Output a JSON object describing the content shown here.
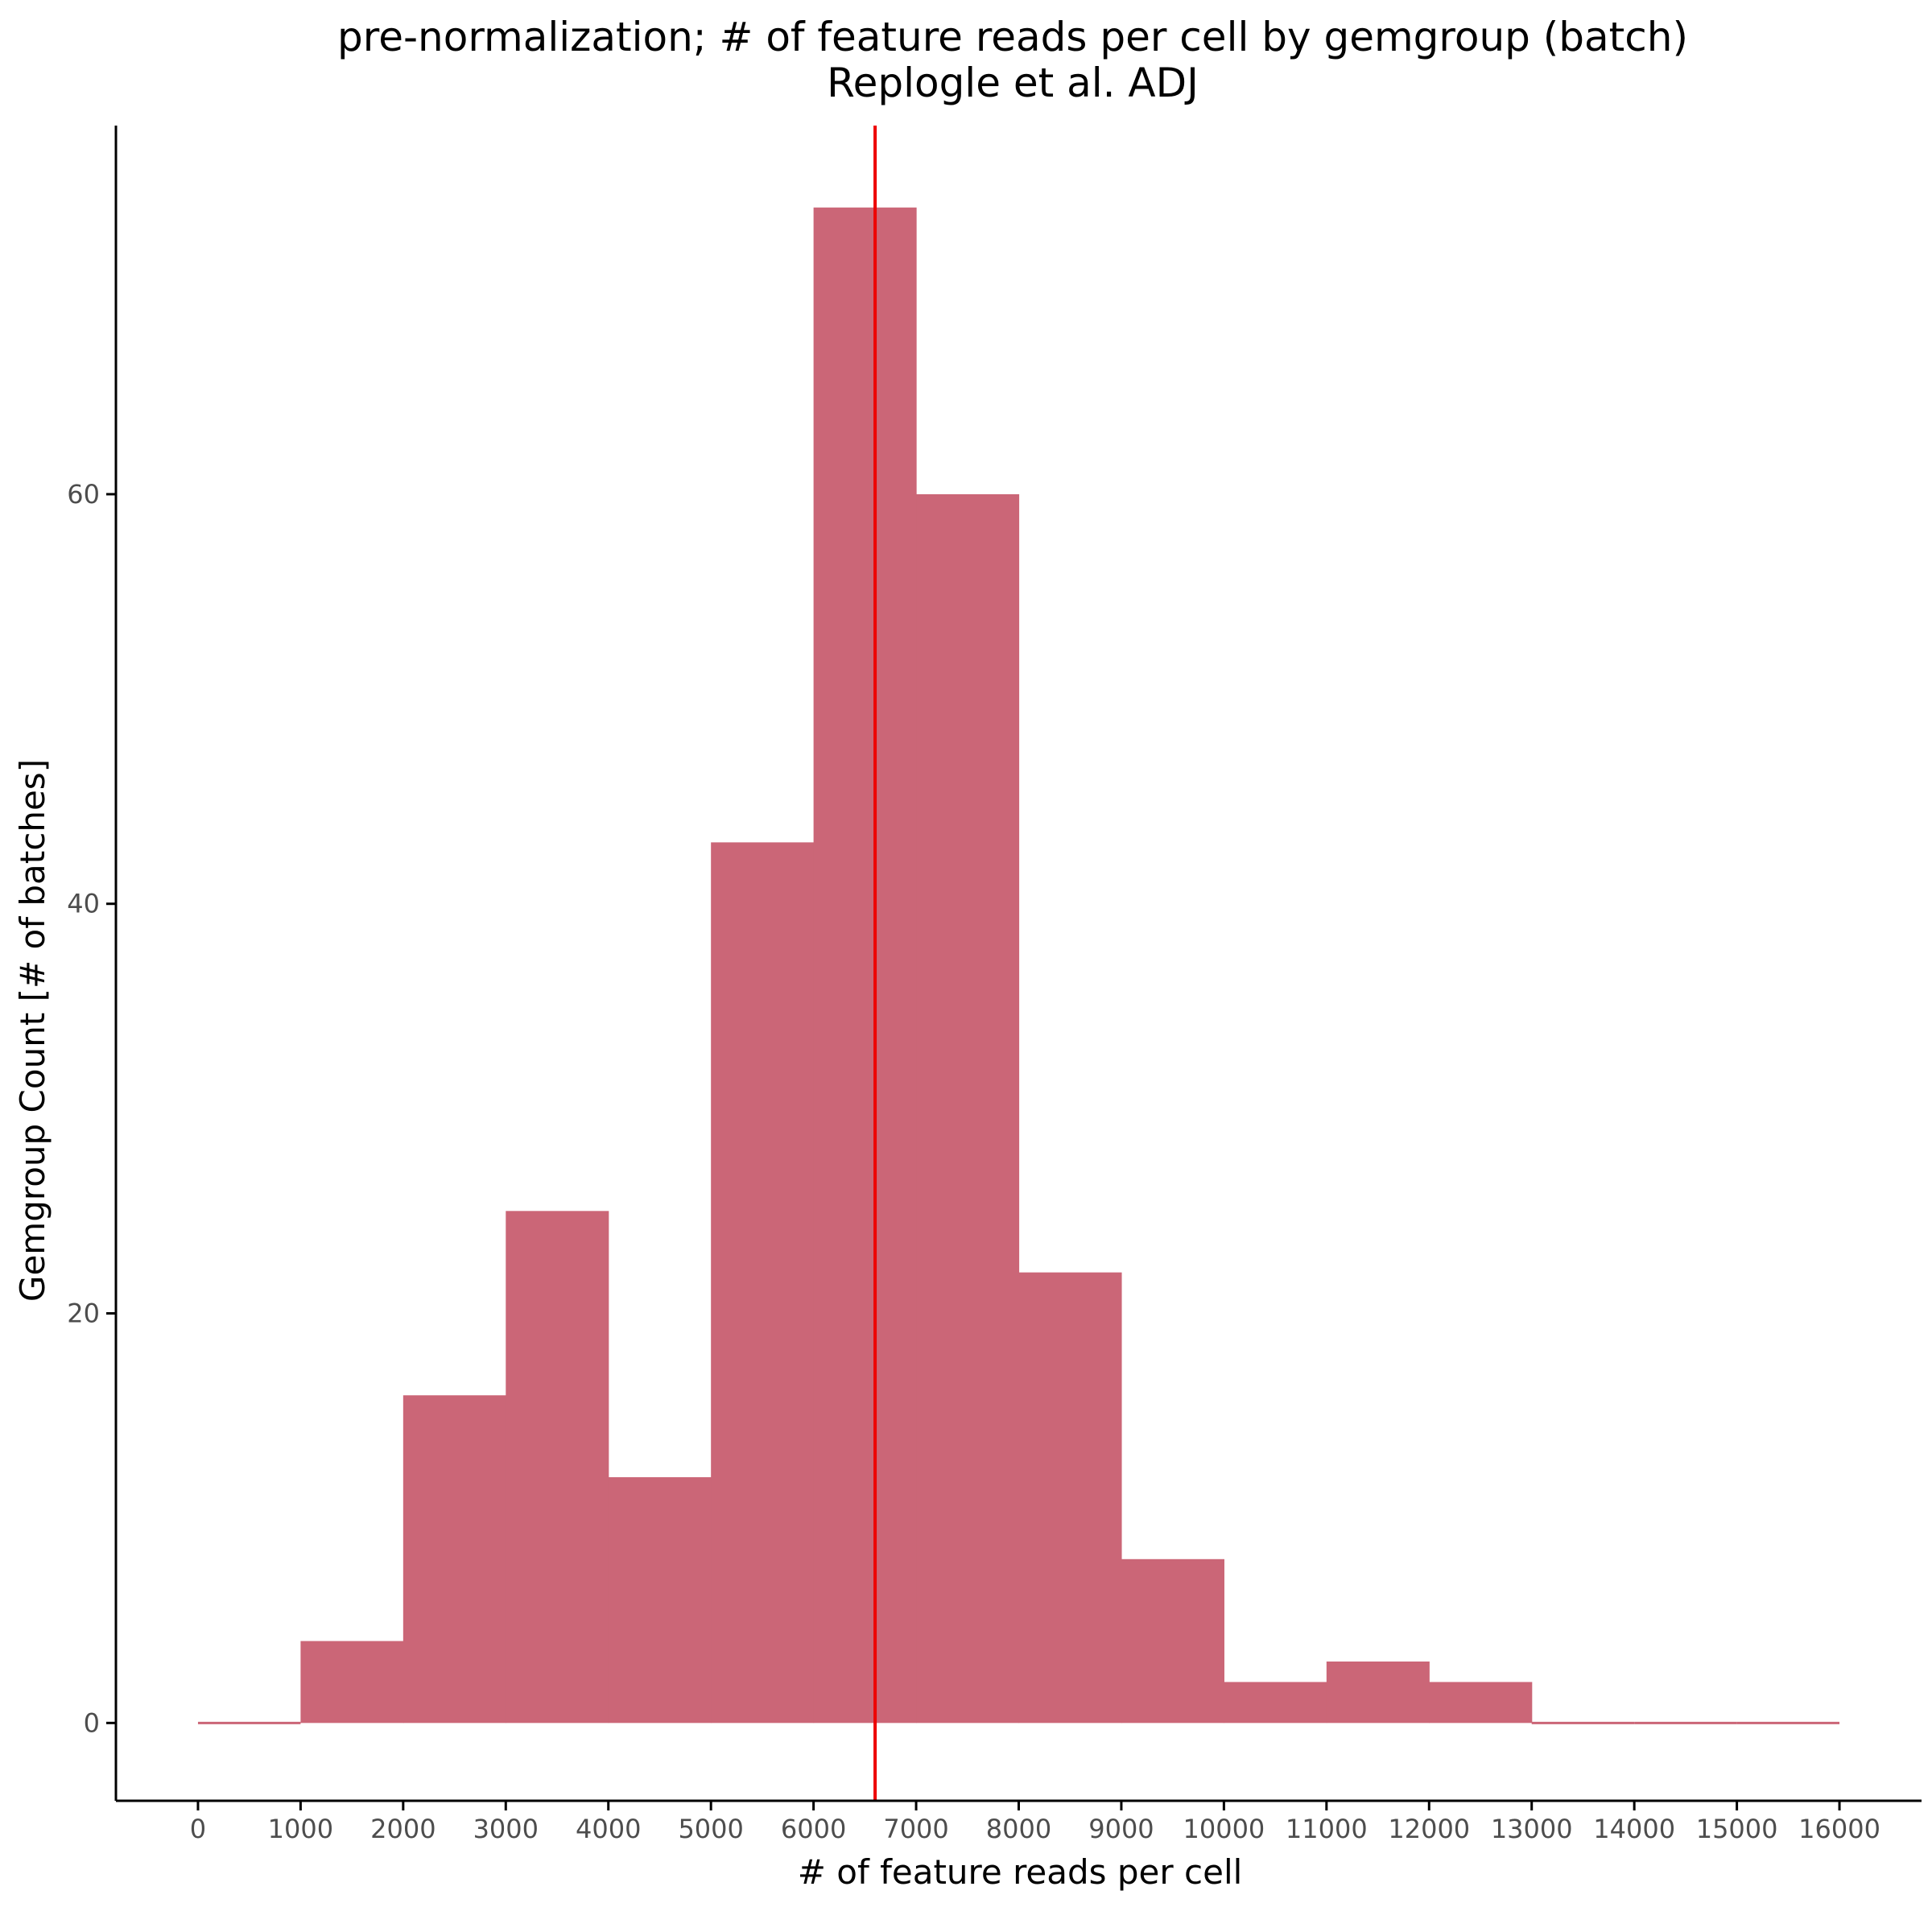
{
  "chart_data": {
    "type": "histogram",
    "title": "pre-normalization; # of feature reads per cell by gemgroup (batch)",
    "subtitle": "Replogle et al. ADJ",
    "xlabel": "# of feature reads per cell",
    "ylabel": "Gemgroup Count [# of batches]",
    "xlim": [
      -800,
      16800
    ],
    "ylim": [
      -3.8,
      78
    ],
    "x_ticks": [
      0,
      1000,
      2000,
      3000,
      4000,
      5000,
      6000,
      7000,
      8000,
      9000,
      10000,
      11000,
      12000,
      13000,
      14000,
      15000,
      16000
    ],
    "x_tick_labels": [
      "0",
      "1000",
      "2000",
      "3000",
      "4000",
      "5000",
      "6000",
      "7000",
      "8000",
      "9000",
      "10000",
      "11000",
      "12000",
      "13000",
      "14000",
      "15000",
      "16000"
    ],
    "y_ticks": [
      0,
      20,
      40,
      60
    ],
    "y_tick_labels": [
      "0",
      "20",
      "40",
      "60"
    ],
    "bin_edges": [
      0,
      1000,
      2000,
      3000,
      4000,
      5000,
      6000,
      7000,
      8000,
      9000,
      10000,
      11000,
      12000,
      13000,
      14000,
      15000,
      16000
    ],
    "counts": [
      0,
      4,
      16,
      25,
      12,
      43,
      74,
      60,
      22,
      8,
      2,
      3,
      2,
      0,
      0,
      0
    ],
    "vline": {
      "x": 6600,
      "color": "#ee0000"
    },
    "bar_color": "#cb6677",
    "grid": false
  }
}
